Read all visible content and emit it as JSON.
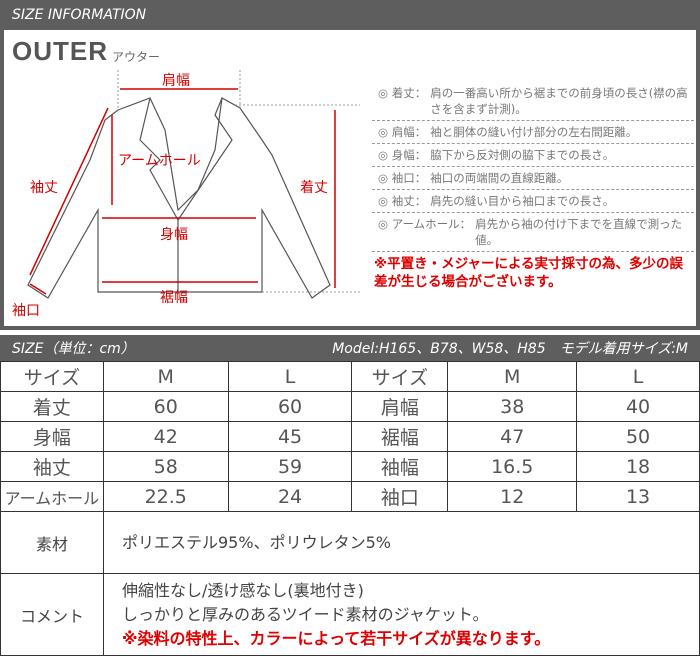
{
  "header": {
    "title": "SIZE INFORMATION"
  },
  "category": {
    "title": "OUTER",
    "subtitle": "アウター"
  },
  "diagram_labels": {
    "shoulder": "肩幅",
    "armhole": "アームホール",
    "sleeve_length": "袖丈",
    "length": "着丈",
    "body_width": "身幅",
    "hem_width": "裾幅",
    "cuff": "袖口"
  },
  "notes": [
    {
      "key": "◎ 着丈：",
      "text": "肩の一番高い所から裾までの前身頃の長さ(襟の高さを含まず計測)。"
    },
    {
      "key": "◎ 肩幅：",
      "text": "袖と胴体の縫い付け部分の左右間距離。"
    },
    {
      "key": "◎ 身幅：",
      "text": "脇下から反対側の脇下までの長さ。"
    },
    {
      "key": "◎ 袖口：",
      "text": "袖口の両端間の直線距離。"
    },
    {
      "key": "◎ 袖丈：",
      "text": "肩先の縫い目から袖口までの長さ。"
    },
    {
      "key": "◎ アームホール：",
      "text": "肩先から袖の付け下までを直線で測った値。"
    }
  ],
  "warning": "※平置き・メジャーによる実寸採寸の為、多少の誤差が生じる場合がございます。",
  "size_bar": {
    "left": "SIZE（単位：cm）",
    "right": "Model:H165、B78、W58、H85　モデル着用サイズ:M"
  },
  "size_table": {
    "rows": [
      [
        "サイズ",
        "M",
        "L",
        "サイズ",
        "M",
        "L"
      ],
      [
        "着丈",
        "60",
        "60",
        "肩幅",
        "38",
        "40"
      ],
      [
        "身幅",
        "42",
        "45",
        "裾幅",
        "47",
        "50"
      ],
      [
        "袖丈",
        "58",
        "59",
        "袖幅",
        "16.5",
        "18"
      ],
      [
        "アームホール",
        "22.5",
        "24",
        "袖口",
        "12",
        "13"
      ]
    ]
  },
  "material": {
    "label": "素材",
    "value": "ポリエステル95%、ポリウレタン5%"
  },
  "comment": {
    "label": "コメント",
    "lines": [
      "伸縮性なし/透け感なし(裏地付き)",
      "しっかりと厚みのあるツイード素材のジャケット。"
    ],
    "warning": "※染料の特性上、カラーによって若干サイズが異なります。"
  },
  "colors": {
    "bar": "#5e5e5e",
    "accent_red": "#e00000"
  }
}
